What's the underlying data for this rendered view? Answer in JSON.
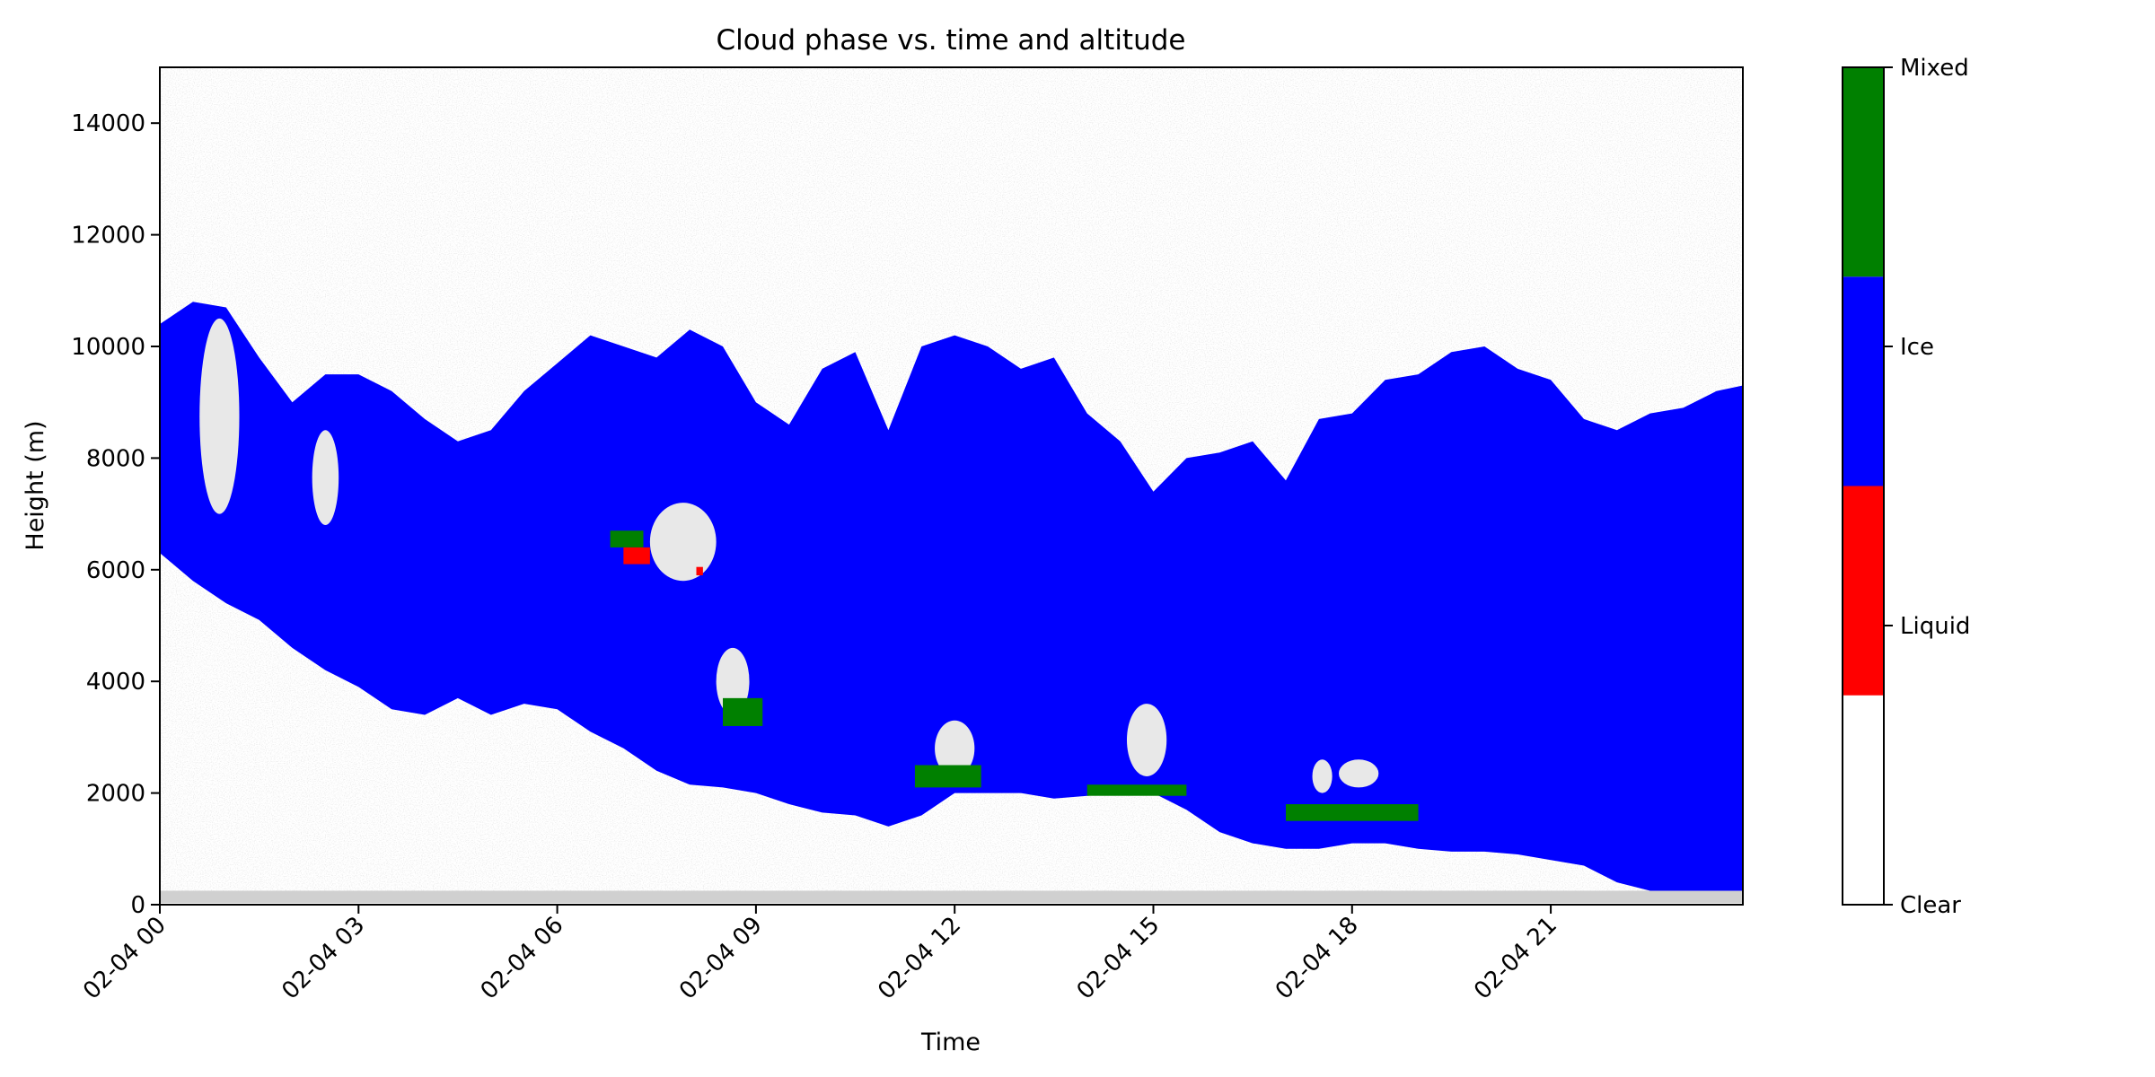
{
  "chart_data": {
    "type": "heatmap",
    "title": "Cloud phase vs. time and altitude",
    "xlabel": "Time",
    "ylabel": "Height (m)",
    "x_tick_labels": [
      "02-04 00",
      "02-04 03",
      "02-04 06",
      "02-04 09",
      "02-04 12",
      "02-04 15",
      "02-04 18",
      "02-04 21"
    ],
    "x_tick_hours": [
      0,
      3,
      6,
      9,
      12,
      15,
      18,
      21
    ],
    "xlim_hours": [
      0,
      23.9
    ],
    "y_tick_values": [
      0,
      2000,
      4000,
      6000,
      8000,
      10000,
      12000,
      14000
    ],
    "y_tick_labels": [
      "0",
      "2000",
      "4000",
      "6000",
      "8000",
      "10000",
      "12000",
      "14000"
    ],
    "ylim": [
      0,
      15000
    ],
    "categories": [
      {
        "code": 0,
        "label": "Clear",
        "color": "#ffffff"
      },
      {
        "code": 1,
        "label": "Liquid",
        "color": "#ff0000"
      },
      {
        "code": 2,
        "label": "Ice",
        "color": "#0000ff"
      },
      {
        "code": 3,
        "label": "Mixed",
        "color": "#008000"
      }
    ],
    "noise_color": "#c8c8c8",
    "ice_cloud": {
      "hours": [
        0,
        0.5,
        1,
        1.5,
        2,
        2.5,
        3,
        3.5,
        4,
        4.5,
        5,
        5.5,
        6,
        6.5,
        7,
        7.5,
        8,
        8.5,
        9,
        9.5,
        10,
        10.5,
        11,
        11.5,
        12,
        12.5,
        13,
        13.5,
        14,
        14.5,
        15,
        15.5,
        16,
        16.5,
        17,
        17.5,
        18,
        18.5,
        19,
        19.5,
        20,
        20.5,
        21,
        21.5,
        22,
        22.5,
        23,
        23.5,
        23.9
      ],
      "base_m": [
        6300,
        5800,
        5400,
        5100,
        4600,
        4200,
        3900,
        3500,
        3400,
        3700,
        3400,
        3600,
        3500,
        3100,
        2800,
        2400,
        2150,
        2100,
        2000,
        1800,
        1650,
        1600,
        1400,
        1600,
        2000,
        2000,
        2000,
        1900,
        1950,
        2000,
        2000,
        1700,
        1300,
        1100,
        1000,
        1000,
        1100,
        1100,
        1000,
        950,
        950,
        900,
        800,
        700,
        400,
        250,
        250,
        250,
        250
      ],
      "top_m": [
        10400,
        10800,
        10700,
        9800,
        9000,
        9500,
        9500,
        9200,
        8700,
        8300,
        8500,
        9200,
        9700,
        10200,
        10000,
        9800,
        10300,
        10000,
        9000,
        8600,
        9600,
        9900,
        8500,
        10000,
        10200,
        10000,
        9600,
        9800,
        8800,
        8300,
        7400,
        8000,
        8100,
        8300,
        7600,
        8700,
        8800,
        9400,
        9500,
        9900,
        10000,
        9600,
        9400,
        8700,
        8500,
        8800,
        8900,
        9200,
        9300
      ]
    },
    "mixed_features": [
      {
        "hours": [
          6.8,
          7.3
        ],
        "height_m": [
          6400,
          6700
        ]
      },
      {
        "hours": [
          8.5,
          9.1
        ],
        "height_m": [
          3200,
          3700
        ]
      },
      {
        "hours": [
          11.4,
          12.4
        ],
        "height_m": [
          2100,
          2500
        ]
      },
      {
        "hours": [
          14.0,
          15.5
        ],
        "height_m": [
          1950,
          2150
        ]
      },
      {
        "hours": [
          17.0,
          19.0
        ],
        "height_m": [
          1500,
          1800
        ]
      }
    ],
    "liquid_features": [
      {
        "hours": [
          7.0,
          7.4
        ],
        "height_m": [
          6100,
          6400
        ]
      },
      {
        "hours": [
          8.1,
          8.2
        ],
        "height_m": [
          5900,
          6050
        ]
      }
    ],
    "clear_gaps": [
      {
        "hours": [
          0.6,
          1.2
        ],
        "height_m": [
          7000,
          10500
        ]
      },
      {
        "hours": [
          2.3,
          2.7
        ],
        "height_m": [
          6800,
          8500
        ]
      },
      {
        "hours": [
          7.4,
          8.4
        ],
        "height_m": [
          5800,
          7200
        ]
      },
      {
        "hours": [
          8.4,
          8.9
        ],
        "height_m": [
          3400,
          4600
        ]
      },
      {
        "hours": [
          11.7,
          12.3
        ],
        "height_m": [
          2300,
          3300
        ]
      },
      {
        "hours": [
          14.6,
          15.2
        ],
        "height_m": [
          2300,
          3600
        ]
      },
      {
        "hours": [
          17.4,
          17.7
        ],
        "height_m": [
          2000,
          2600
        ]
      },
      {
        "hours": [
          17.8,
          18.4
        ],
        "height_m": [
          2100,
          2600
        ]
      }
    ],
    "colorbar": {
      "orientation": "vertical",
      "position": "right"
    }
  }
}
